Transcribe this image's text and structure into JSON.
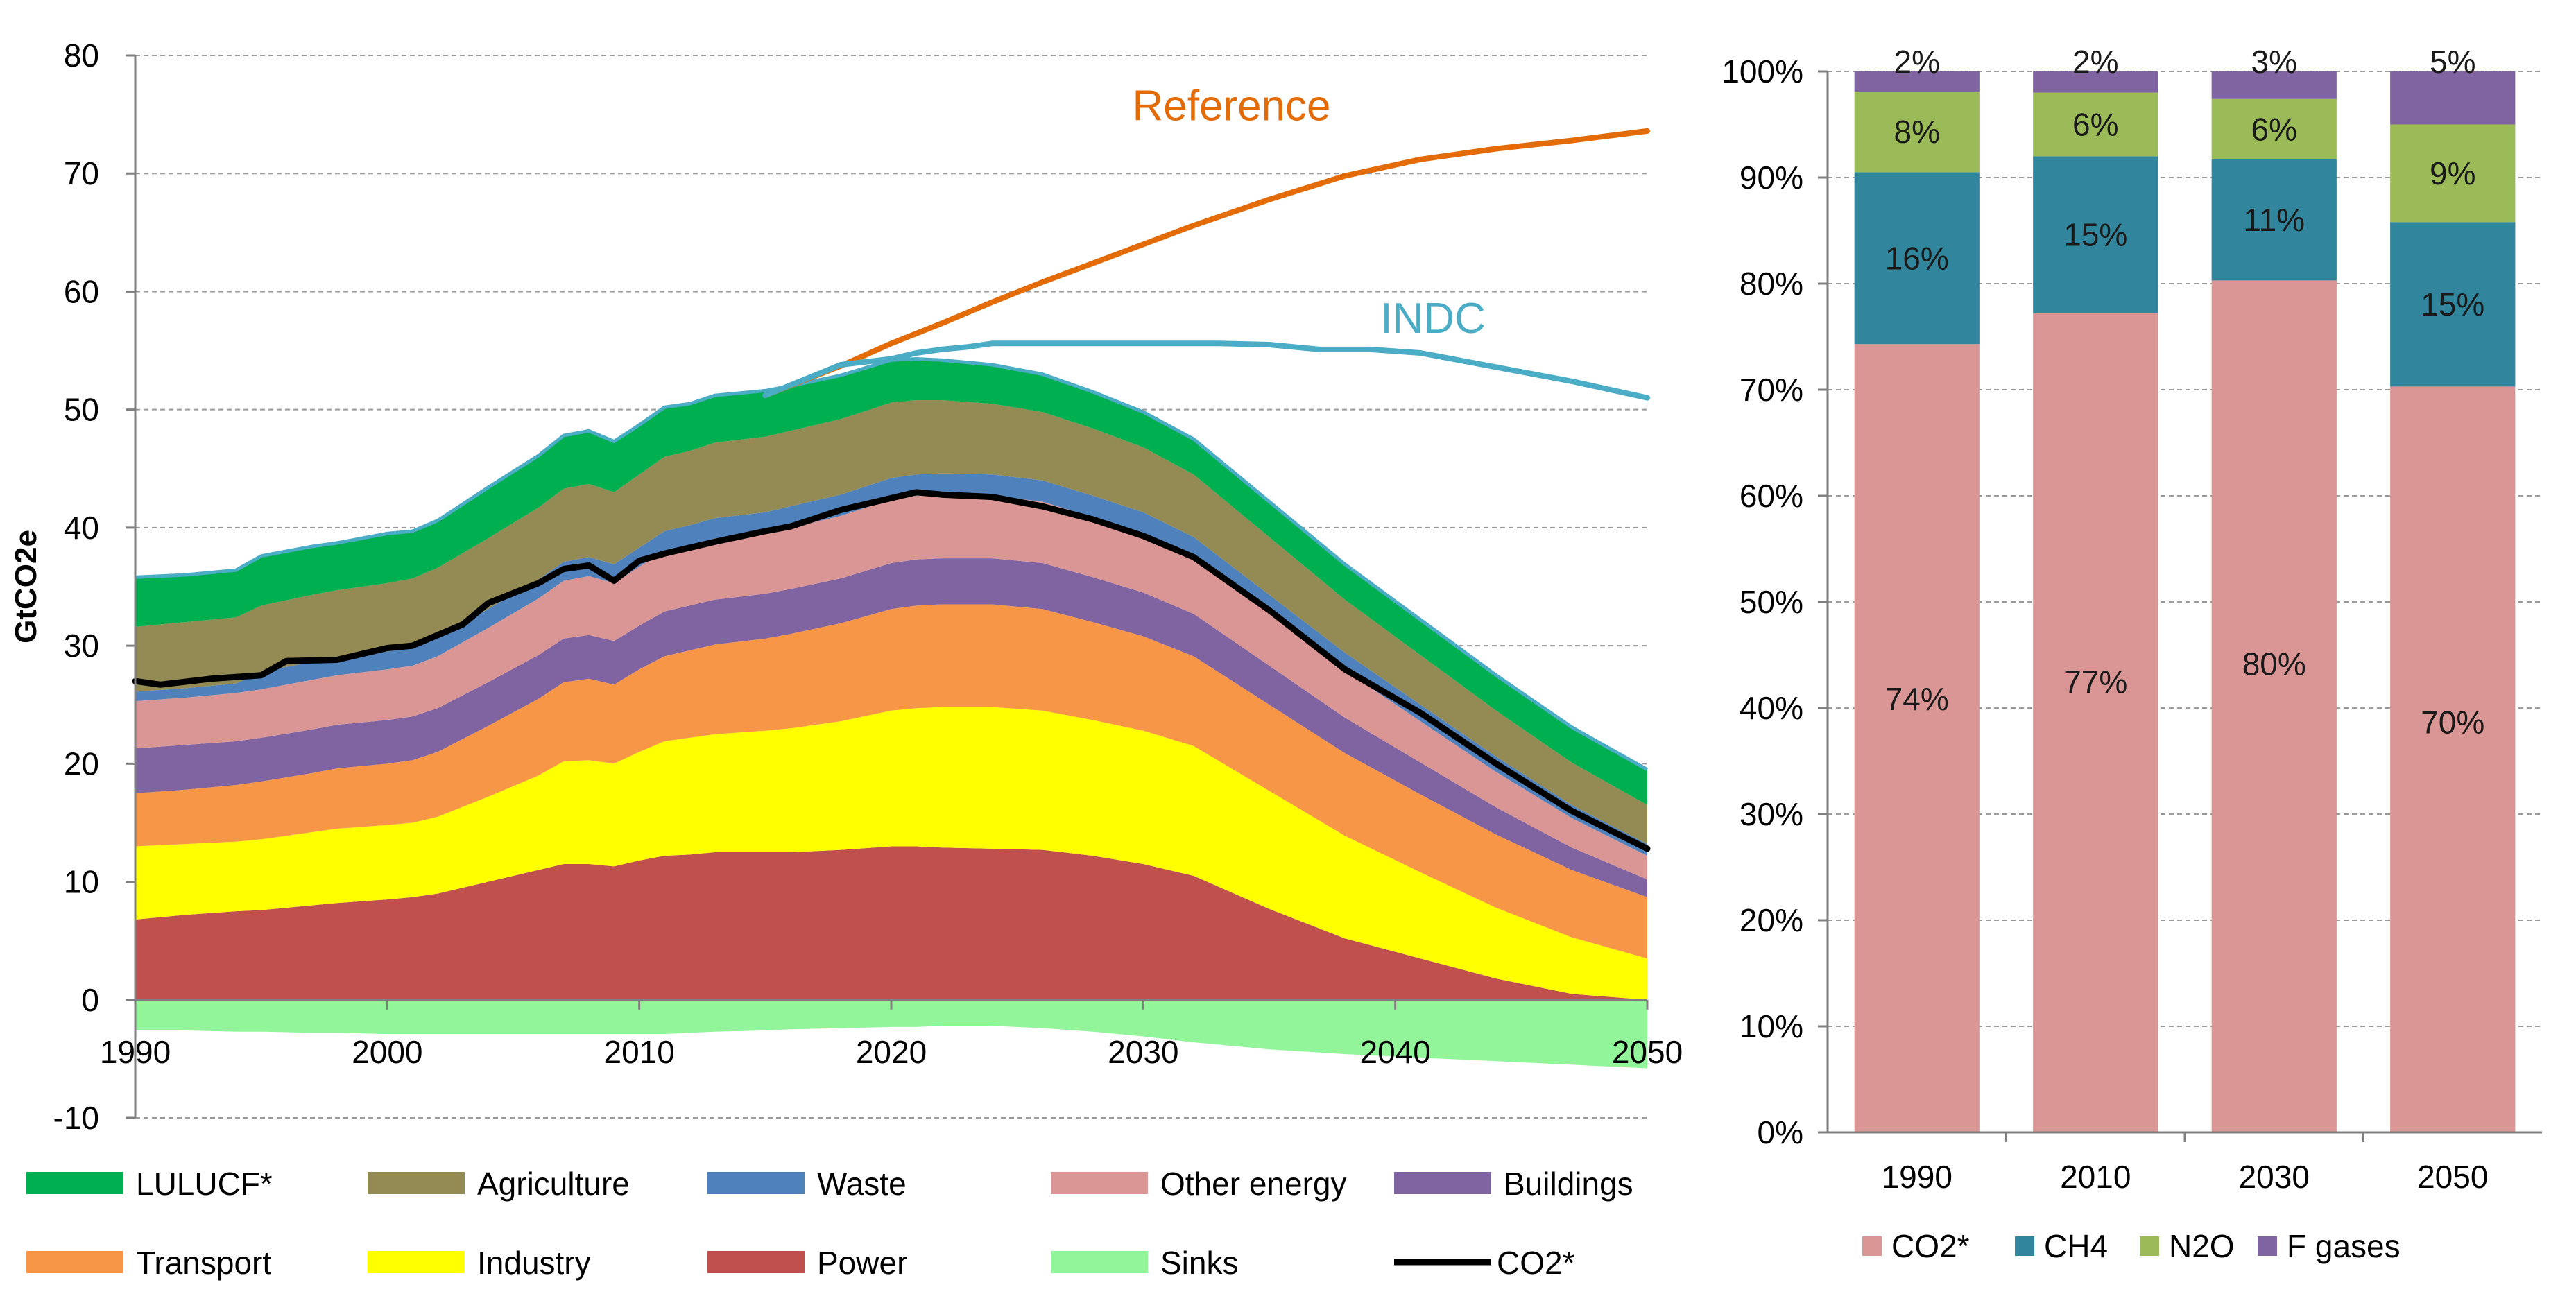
{
  "chart_data": [
    {
      "type": "area",
      "title": "",
      "xlabel": "",
      "ylabel": "GtCO2e",
      "xlim": [
        1990,
        2050
      ],
      "ylim": [
        -10,
        80
      ],
      "x_ticks": [
        "1990",
        "2000",
        "2010",
        "2020",
        "2030",
        "2040",
        "2050"
      ],
      "y_ticks": [
        "-10",
        "0",
        "10",
        "20",
        "30",
        "40",
        "50",
        "60",
        "70",
        "80"
      ],
      "grid": true,
      "x": [
        1990,
        1992,
        1994,
        1995,
        1997,
        1998,
        2000,
        2001,
        2002,
        2004,
        2006,
        2007,
        2008,
        2009,
        2010,
        2011,
        2012,
        2013,
        2015,
        2016,
        2018,
        2020,
        2021,
        2022,
        2024,
        2026,
        2028,
        2030,
        2032,
        2035,
        2038,
        2041,
        2044,
        2047,
        2050
      ],
      "series": [
        {
          "name": "Power",
          "color": "#c0504d",
          "values": [
            6.8,
            7.2,
            7.5,
            7.6,
            8.0,
            8.2,
            8.5,
            8.7,
            9.0,
            10.0,
            11.0,
            11.5,
            11.5,
            11.3,
            11.8,
            12.2,
            12.3,
            12.5,
            12.5,
            12.5,
            12.7,
            13.0,
            13.0,
            12.9,
            12.8,
            12.7,
            12.2,
            11.5,
            10.5,
            7.7,
            5.2,
            3.5,
            1.8,
            0.5,
            0.0
          ]
        },
        {
          "name": "Industry",
          "color": "#ffff00",
          "values": [
            6.2,
            6.0,
            5.9,
            6.0,
            6.2,
            6.3,
            6.3,
            6.3,
            6.5,
            7.2,
            8.0,
            8.7,
            8.8,
            8.7,
            9.2,
            9.7,
            9.9,
            10.0,
            10.3,
            10.5,
            10.9,
            11.5,
            11.7,
            11.9,
            12.0,
            11.8,
            11.5,
            11.3,
            11.0,
            10.0,
            8.7,
            7.3,
            6.0,
            4.8,
            3.5
          ]
        },
        {
          "name": "Transport",
          "color": "#f79646",
          "values": [
            4.5,
            4.6,
            4.8,
            4.9,
            5.0,
            5.1,
            5.2,
            5.3,
            5.5,
            6.0,
            6.5,
            6.7,
            6.9,
            6.7,
            7.0,
            7.2,
            7.4,
            7.6,
            7.8,
            8.0,
            8.3,
            8.6,
            8.7,
            8.7,
            8.7,
            8.6,
            8.3,
            8.0,
            7.6,
            7.3,
            7.0,
            6.6,
            6.2,
            5.7,
            5.2
          ]
        },
        {
          "name": "Buildings",
          "color": "#8064a2",
          "values": [
            3.8,
            3.8,
            3.7,
            3.7,
            3.7,
            3.7,
            3.7,
            3.7,
            3.7,
            3.7,
            3.7,
            3.7,
            3.7,
            3.7,
            3.7,
            3.8,
            3.8,
            3.8,
            3.8,
            3.8,
            3.8,
            3.9,
            3.9,
            3.9,
            3.9,
            3.9,
            3.8,
            3.7,
            3.6,
            3.3,
            3.0,
            2.7,
            2.3,
            1.9,
            1.5
          ]
        },
        {
          "name": "Other energy",
          "color": "#da9694",
          "values": [
            4.0,
            4.0,
            4.1,
            4.1,
            4.2,
            4.2,
            4.3,
            4.3,
            4.4,
            4.6,
            4.8,
            4.9,
            5.0,
            4.9,
            5.0,
            5.1,
            5.1,
            5.2,
            5.2,
            5.2,
            5.3,
            5.4,
            5.4,
            5.4,
            5.3,
            5.2,
            5.1,
            5.0,
            4.8,
            4.4,
            4.0,
            3.5,
            3.0,
            2.5,
            2.0
          ]
        },
        {
          "name": "Waste",
          "color": "#4f81bd",
          "values": [
            0.8,
            0.8,
            0.8,
            1.5,
            1.5,
            1.5,
            1.5,
            1.6,
            1.6,
            1.6,
            1.6,
            1.6,
            1.6,
            1.6,
            1.6,
            1.7,
            1.7,
            1.7,
            1.7,
            1.8,
            1.8,
            1.8,
            1.8,
            1.8,
            1.8,
            1.8,
            1.8,
            1.8,
            1.7,
            1.6,
            1.5,
            1.4,
            1.3,
            1.1,
            1.0
          ]
        },
        {
          "name": "Agriculture",
          "color": "#948a54",
          "values": [
            5.5,
            5.6,
            5.6,
            5.6,
            5.7,
            5.7,
            5.8,
            5.8,
            5.9,
            6.0,
            6.1,
            6.2,
            6.2,
            6.1,
            6.2,
            6.3,
            6.3,
            6.4,
            6.4,
            6.4,
            6.4,
            6.4,
            6.3,
            6.2,
            6.0,
            5.8,
            5.7,
            5.5,
            5.3,
            4.9,
            4.5,
            4.2,
            3.9,
            3.6,
            3.3
          ]
        },
        {
          "name": "LULUCF*",
          "color": "#00b050",
          "values": [
            4.2,
            4.0,
            4.0,
            4.2,
            4.1,
            4.0,
            4.2,
            4.0,
            4.0,
            4.3,
            4.4,
            4.5,
            4.5,
            4.3,
            4.2,
            4.2,
            4.0,
            4.0,
            3.9,
            3.8,
            3.7,
            3.6,
            3.5,
            3.4,
            3.3,
            3.2,
            3.1,
            3.0,
            3.0,
            3.0,
            3.0,
            3.0,
            3.0,
            3.0,
            3.0
          ]
        },
        {
          "name": "Sinks",
          "color": "#92f59a",
          "values": [
            -2.6,
            -2.6,
            -2.7,
            -2.7,
            -2.8,
            -2.8,
            -2.9,
            -2.9,
            -2.9,
            -2.9,
            -2.9,
            -2.9,
            -2.9,
            -2.9,
            -2.9,
            -2.9,
            -2.8,
            -2.7,
            -2.6,
            -2.5,
            -2.4,
            -2.3,
            -2.3,
            -2.2,
            -2.2,
            -2.4,
            -2.7,
            -3.1,
            -3.6,
            -4.2,
            -4.6,
            -4.9,
            -5.2,
            -5.5,
            -5.8
          ]
        }
      ],
      "lines": [
        {
          "name": "CO2*",
          "color": "#000000",
          "x": [
            1990,
            1991,
            1993,
            1995,
            1996,
            1998,
            2000,
            2001,
            2003,
            2004,
            2006,
            2007,
            2008,
            2009,
            2010,
            2011,
            2013,
            2015,
            2016,
            2018,
            2020,
            2021,
            2022,
            2024,
            2026,
            2028,
            2030,
            2032,
            2035,
            2038,
            2041,
            2044,
            2047,
            2050
          ],
          "values": [
            27.0,
            26.7,
            27.2,
            27.5,
            28.7,
            28.8,
            29.8,
            30.0,
            31.8,
            33.6,
            35.3,
            36.5,
            36.8,
            35.5,
            37.2,
            37.8,
            38.8,
            39.7,
            40.1,
            41.5,
            42.5,
            43.0,
            42.8,
            42.6,
            41.8,
            40.7,
            39.3,
            37.5,
            33.0,
            28.0,
            24.3,
            20.0,
            16.0,
            12.8
          ]
        },
        {
          "name": "Reference",
          "color": "#e36c09",
          "label": "Reference",
          "x": [
            2015,
            2018,
            2020,
            2022,
            2024,
            2026,
            2028,
            2030,
            2032,
            2035,
            2038,
            2041,
            2044,
            2047,
            2050
          ],
          "values": [
            51.2,
            53.7,
            55.6,
            57.3,
            59.1,
            60.8,
            62.4,
            64.0,
            65.6,
            67.8,
            69.8,
            71.2,
            72.1,
            72.8,
            73.6
          ]
        },
        {
          "name": "INDC",
          "color": "#4bacc6",
          "label": "INDC",
          "x": [
            2015,
            2018,
            2020,
            2021,
            2022,
            2023,
            2024,
            2027,
            2030,
            2033,
            2035,
            2037,
            2039,
            2041,
            2044,
            2047,
            2050
          ],
          "values": [
            51.2,
            53.8,
            54.3,
            54.8,
            55.1,
            55.3,
            55.6,
            55.6,
            55.6,
            55.6,
            55.5,
            55.1,
            55.1,
            54.8,
            53.6,
            52.4,
            51.0
          ]
        }
      ],
      "legend": [
        {
          "name": "LULUCF*",
          "color": "#00b050"
        },
        {
          "name": "Agriculture",
          "color": "#948a54"
        },
        {
          "name": "Waste",
          "color": "#4f81bd"
        },
        {
          "name": "Other energy",
          "color": "#da9694"
        },
        {
          "name": "Buildings",
          "color": "#8064a2"
        },
        {
          "name": "Transport",
          "color": "#f79646"
        },
        {
          "name": "Industry",
          "color": "#ffff00"
        },
        {
          "name": "Power",
          "color": "#c0504d"
        },
        {
          "name": "Sinks",
          "color": "#92f59a"
        },
        {
          "name": "CO2*",
          "color": "#000000",
          "line": true
        }
      ],
      "legend_position": "bottom"
    },
    {
      "type": "bar",
      "stacked": true,
      "percent": true,
      "title": "",
      "xlabel": "",
      "ylabel": "",
      "ylim": [
        0,
        100
      ],
      "y_ticks": [
        "0%",
        "10%",
        "20%",
        "30%",
        "40%",
        "50%",
        "60%",
        "70%",
        "80%",
        "90%",
        "100%"
      ],
      "grid": true,
      "categories": [
        "1990",
        "2010",
        "2030",
        "2050"
      ],
      "series": [
        {
          "name": "CO2*",
          "color": "#da9694",
          "values": [
            74.3,
            77.2,
            80.3,
            70.3
          ],
          "labels": [
            "74%",
            "77%",
            "80%",
            "70%"
          ]
        },
        {
          "name": "CH4",
          "color": "#31859c",
          "values": [
            16.2,
            14.8,
            11.4,
            15.5
          ],
          "labels": [
            "16%",
            "15%",
            "11%",
            "15%"
          ]
        },
        {
          "name": "N2O",
          "color": "#9bbb59",
          "values": [
            7.6,
            6.0,
            5.7,
            9.2
          ],
          "labels": [
            "8%",
            "6%",
            "6%",
            "9%"
          ]
        },
        {
          "name": "F gases",
          "color": "#8064a2",
          "values": [
            1.9,
            2.0,
            2.6,
            5.0
          ],
          "labels": [
            "2%",
            "2%",
            "3%",
            "5%"
          ]
        }
      ],
      "legend_position": "bottom"
    }
  ]
}
